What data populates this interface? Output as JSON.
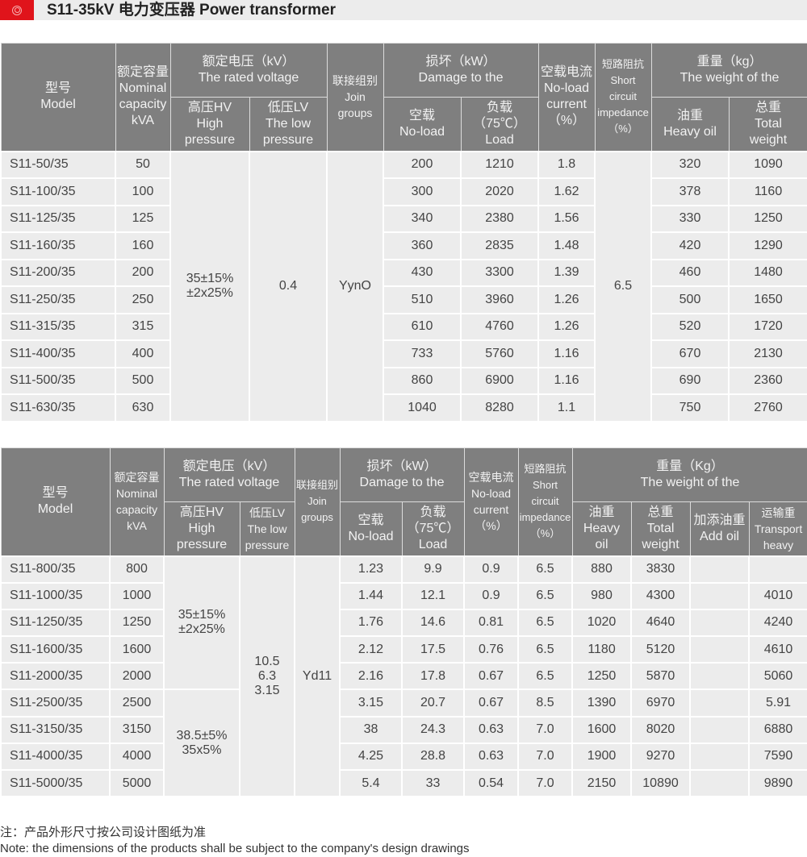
{
  "header": {
    "title": "S11-35kV 电力变压器 Power transformer",
    "logo_icon": "target-circle-icon",
    "logo_color": "#e0141b"
  },
  "table1": {
    "headers": {
      "model": [
        "型号",
        "Model"
      ],
      "capacity": [
        "额定容量",
        "Nominal",
        "capacity",
        "kVA"
      ],
      "voltage": [
        "额定电压（kV）",
        "The rated voltage"
      ],
      "hv": [
        "高压HV",
        "High",
        "pressure"
      ],
      "lv": [
        "低压LV",
        "The low",
        "pressure"
      ],
      "join": [
        "联接组别",
        "Join",
        "groups"
      ],
      "damage": [
        "损坏（kW）",
        "Damage to the"
      ],
      "noload": [
        "空载",
        "No-load"
      ],
      "load": [
        "负载",
        "（75℃）",
        "Load"
      ],
      "current": [
        "空载电流",
        "No-load",
        "current",
        "（%）"
      ],
      "impedance": [
        "短路阻抗",
        "Short",
        "circuit",
        "impedance",
        "（%）"
      ],
      "weight": [
        "重量（kg）",
        "The weight of the"
      ],
      "oil": [
        "油重",
        "Heavy oil"
      ],
      "total": [
        "总重",
        "Total",
        "weight"
      ]
    },
    "merged": {
      "hv": [
        "35±15%",
        "±2x25%"
      ],
      "lv": "0.4",
      "join": "YynO",
      "impedance": "6.5"
    },
    "rows": [
      {
        "model": "S11-50/35",
        "capacity": "50",
        "noload": "200",
        "load": "1210",
        "current": "1.8",
        "oil": "320",
        "total": "1090"
      },
      {
        "model": "S11-100/35",
        "capacity": "100",
        "noload": "300",
        "load": "2020",
        "current": "1.62",
        "oil": "378",
        "total": "1160"
      },
      {
        "model": "S11-125/35",
        "capacity": "125",
        "noload": "340",
        "load": "2380",
        "current": "1.56",
        "oil": "330",
        "total": "1250"
      },
      {
        "model": "S11-160/35",
        "capacity": "160",
        "noload": "360",
        "load": "2835",
        "current": "1.48",
        "oil": "420",
        "total": "1290"
      },
      {
        "model": "S11-200/35",
        "capacity": "200",
        "noload": "430",
        "load": "3300",
        "current": "1.39",
        "oil": "460",
        "total": "1480"
      },
      {
        "model": "S11-250/35",
        "capacity": "250",
        "noload": "510",
        "load": "3960",
        "current": "1.26",
        "oil": "500",
        "total": "1650"
      },
      {
        "model": "S11-315/35",
        "capacity": "315",
        "noload": "610",
        "load": "4760",
        "current": "1.26",
        "oil": "520",
        "total": "1720"
      },
      {
        "model": "S11-400/35",
        "capacity": "400",
        "noload": "733",
        "load": "5760",
        "current": "1.16",
        "oil": "670",
        "total": "2130"
      },
      {
        "model": "S11-500/35",
        "capacity": "500",
        "noload": "860",
        "load": "6900",
        "current": "1.16",
        "oil": "690",
        "total": "2360"
      },
      {
        "model": "S11-630/35",
        "capacity": "630",
        "noload": "1040",
        "load": "8280",
        "current": "1.1",
        "oil": "750",
        "total": "2760"
      }
    ]
  },
  "table2": {
    "headers": {
      "model": [
        "型号",
        "Model"
      ],
      "capacity": [
        "额定容量",
        "Nominal",
        "capacity",
        "kVA"
      ],
      "voltage": [
        "额定电压（kV）",
        "The rated voltage"
      ],
      "hv": [
        "高压HV",
        "High",
        "pressure"
      ],
      "lv": [
        "低压LV",
        "The low",
        "pressure"
      ],
      "join": [
        "联接组别",
        "Join",
        "groups"
      ],
      "damage": [
        "损坏（kW）",
        "Damage to the"
      ],
      "noload": [
        "空载",
        "No-load"
      ],
      "load": [
        "负载",
        "（75℃）",
        "Load"
      ],
      "current": [
        "空载电流",
        "No-load",
        "current",
        "（%）"
      ],
      "impedance": [
        "短路阻抗",
        "Short",
        "circuit",
        "impedance",
        "（%）"
      ],
      "weight": [
        "重量（Kg）",
        "The weight of the"
      ],
      "oil": [
        "油重",
        "Heavy",
        "oil"
      ],
      "total": [
        "总重",
        "Total",
        "weight"
      ],
      "addoil": [
        "加添油重",
        "Add oil"
      ],
      "transport": [
        "运输重",
        "Transport",
        "heavy"
      ]
    },
    "merged": {
      "hv_a": [
        "35±15%",
        "±2x25%"
      ],
      "hv_b": [
        "38.5±5%",
        "35x5%"
      ],
      "lv": [
        "10.5",
        "6.3",
        "3.15"
      ],
      "join": "Yd11"
    },
    "rows": [
      {
        "model": "S11-800/35",
        "capacity": "800",
        "noload": "1.23",
        "load": "9.9",
        "current": "0.9",
        "impedance": "6.5",
        "oil": "880",
        "total": "3830",
        "addoil": "",
        "transport": ""
      },
      {
        "model": "S11-1000/35",
        "capacity": "1000",
        "noload": "1.44",
        "load": "12.1",
        "current": "0.9",
        "impedance": "6.5",
        "oil": "980",
        "total": "4300",
        "addoil": "",
        "transport": "4010"
      },
      {
        "model": "S11-1250/35",
        "capacity": "1250",
        "noload": "1.76",
        "load": "14.6",
        "current": "0.81",
        "impedance": "6.5",
        "oil": "1020",
        "total": "4640",
        "addoil": "",
        "transport": "4240"
      },
      {
        "model": "S11-1600/35",
        "capacity": "1600",
        "noload": "2.12",
        "load": "17.5",
        "current": "0.76",
        "impedance": "6.5",
        "oil": "1180",
        "total": "5120",
        "addoil": "",
        "transport": "4610"
      },
      {
        "model": "S11-2000/35",
        "capacity": "2000",
        "noload": "2.16",
        "load": "17.8",
        "current": "0.67",
        "impedance": "6.5",
        "oil": "1250",
        "total": "5870",
        "addoil": "",
        "transport": "5060"
      },
      {
        "model": "S11-2500/35",
        "capacity": "2500",
        "noload": "3.15",
        "load": "20.7",
        "current": "0.67",
        "impedance": "8.5",
        "oil": "1390",
        "total": "6970",
        "addoil": "",
        "transport": "5.91"
      },
      {
        "model": "S11-3150/35",
        "capacity": "3150",
        "noload": "38",
        "load": "24.3",
        "current": "0.63",
        "impedance": "7.0",
        "oil": "1600",
        "total": "8020",
        "addoil": "",
        "transport": "6880"
      },
      {
        "model": "S11-4000/35",
        "capacity": "4000",
        "noload": "4.25",
        "load": "28.8",
        "current": "0.63",
        "impedance": "7.0",
        "oil": "1900",
        "total": "9270",
        "addoil": "",
        "transport": "7590"
      },
      {
        "model": "S11-5000/35",
        "capacity": "5000",
        "noload": "5.4",
        "load": "33",
        "current": "0.54",
        "impedance": "7.0",
        "oil": "2150",
        "total": "10890",
        "addoil": "",
        "transport": "9890"
      }
    ]
  },
  "notes": {
    "cn": "注：产品外形尺寸按公司设计图纸为准",
    "en": "Note: the dimensions of the products shall be subject to the company's design drawings"
  }
}
